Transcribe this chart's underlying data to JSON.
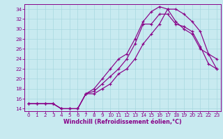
{
  "xlabel": "Windchill (Refroidissement éolien,°C)",
  "bg_color": "#c8eaf0",
  "grid_color": "#a8d8e0",
  "line_color": "#880088",
  "spine_color": "#880088",
  "xlim": [
    -0.5,
    23.5
  ],
  "ylim": [
    13.5,
    35
  ],
  "xticks": [
    0,
    1,
    2,
    3,
    4,
    5,
    6,
    7,
    8,
    9,
    10,
    11,
    12,
    13,
    14,
    15,
    16,
    17,
    18,
    19,
    20,
    21,
    22,
    23
  ],
  "yticks": [
    14,
    16,
    18,
    20,
    22,
    24,
    26,
    28,
    30,
    32,
    34
  ],
  "line1_x": [
    0,
    1,
    2,
    3,
    4,
    5,
    6,
    7,
    8,
    9,
    10,
    11,
    12,
    13,
    14,
    15,
    16,
    17,
    18,
    19,
    20,
    21,
    22,
    23
  ],
  "line1_y": [
    15,
    15,
    15,
    15,
    14,
    14,
    14,
    17,
    17,
    18,
    19,
    21,
    22,
    24,
    27,
    29,
    31,
    34,
    34,
    33,
    31.5,
    29.5,
    25,
    24
  ],
  "line2_x": [
    0,
    1,
    2,
    3,
    4,
    5,
    6,
    7,
    8,
    9,
    10,
    11,
    12,
    13,
    14,
    15,
    16,
    17,
    18,
    19,
    20,
    21,
    22,
    23
  ],
  "line2_y": [
    15,
    15,
    15,
    15,
    14,
    14,
    14,
    17,
    17.5,
    19,
    20.5,
    22,
    24,
    27,
    31,
    31,
    33,
    33,
    31,
    30.5,
    29.5,
    26.5,
    23,
    22
  ],
  "line3_x": [
    0,
    1,
    2,
    3,
    4,
    5,
    6,
    7,
    8,
    9,
    10,
    11,
    12,
    13,
    14,
    15,
    16,
    17,
    18,
    19,
    20,
    21,
    22,
    23
  ],
  "line3_y": [
    15,
    15,
    15,
    15,
    14,
    14,
    14,
    17,
    18,
    20,
    22,
    24,
    25,
    28,
    31.5,
    33.5,
    34.5,
    34,
    31.5,
    30,
    29,
    26,
    25,
    22
  ],
  "tick_fontsize": 5.2,
  "xlabel_fontsize": 5.8,
  "tick_color": "#880088",
  "xlabel_color": "#880088"
}
